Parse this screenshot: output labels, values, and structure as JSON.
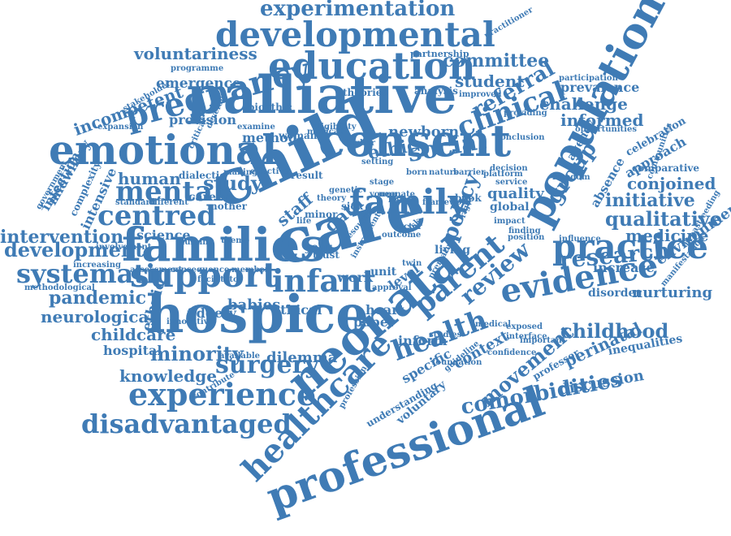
{
  "colors": {
    "word": "#3f7bb5",
    "background": "#ffffff"
  },
  "words": [
    "experimentation",
    "developmental",
    "voluntariness",
    "education",
    "committee",
    "practitioner",
    "partnership",
    "programme",
    "emergence",
    "pregnancy",
    "incompetent",
    "student",
    "participation",
    "prevalence",
    "palliative",
    "referral",
    "challenge",
    "bioethic",
    "theories",
    "analysis",
    "improved",
    "population",
    "provision",
    "emotional",
    "consent",
    "clinical",
    "informed",
    "newborn",
    "method",
    "woman",
    "ethic",
    "social",
    "agency",
    "child",
    "celebration",
    "opportunities",
    "approach",
    "comparative",
    "conjoined",
    "human",
    "mental",
    "study",
    "dialectic",
    "result",
    "centred",
    "career",
    "family",
    "quality",
    "service",
    "freedom",
    "decision",
    "group",
    "absence",
    "initiative",
    "staff",
    "mother",
    "qualitative",
    "intensive",
    "midwifery",
    "infection",
    "data",
    "global",
    "intervention",
    "science",
    "care",
    "practice",
    "medicine",
    "influence",
    "families",
    "year",
    "development",
    "nursing",
    "theme",
    "research",
    "review",
    "increase",
    "environment",
    "systematic",
    "support",
    "infant",
    "unit",
    "level",
    "parent",
    "pandemic",
    "heart",
    "ethical",
    "nurturing",
    "babies",
    "disorder",
    "evidence",
    "neurological",
    "ethnic",
    "fidgety",
    "paper",
    "childhood",
    "childcare",
    "hospital",
    "minority",
    "dilemma",
    "hospice",
    "inform",
    "health",
    "studies",
    "exposed",
    "interface",
    "knowledge",
    "surgery",
    "neonatal",
    "context",
    "movement",
    "perinatal",
    "inequalities",
    "discussion",
    "specific",
    "voluntary",
    "experience",
    "professor",
    "healthcare",
    "comorbidities",
    "understanding",
    "disadvantaged",
    "professional",
    "work",
    "trust",
    "living",
    "policy",
    "minor",
    "sick",
    "book",
    "born",
    "nature",
    "barrier",
    "platform",
    "finding",
    "impact",
    "belief",
    "making",
    "effective",
    "different",
    "standard",
    "complexity",
    "assessment",
    "consequence",
    "member",
    "methodological",
    "increasing",
    "involvement",
    "breastfeeding",
    "communities",
    "manifestation",
    "conclusion",
    "providing",
    "examine",
    "critical",
    "develop",
    "mexican",
    "higher",
    "eligibility",
    "expansion",
    "stakeholder",
    "government",
    "innovative",
    "available",
    "facilitator",
    "contribute",
    "medical",
    "important",
    "confidence",
    "guideline",
    "foundation",
    "profession",
    "stage",
    "young",
    "setting",
    "twin",
    "risk",
    "outcome",
    "position",
    "instrument",
    "approval",
    "resource",
    "genetic",
    "neonate",
    "theory",
    "life",
    "sector",
    "right",
    "premature",
    "framework"
  ]
}
